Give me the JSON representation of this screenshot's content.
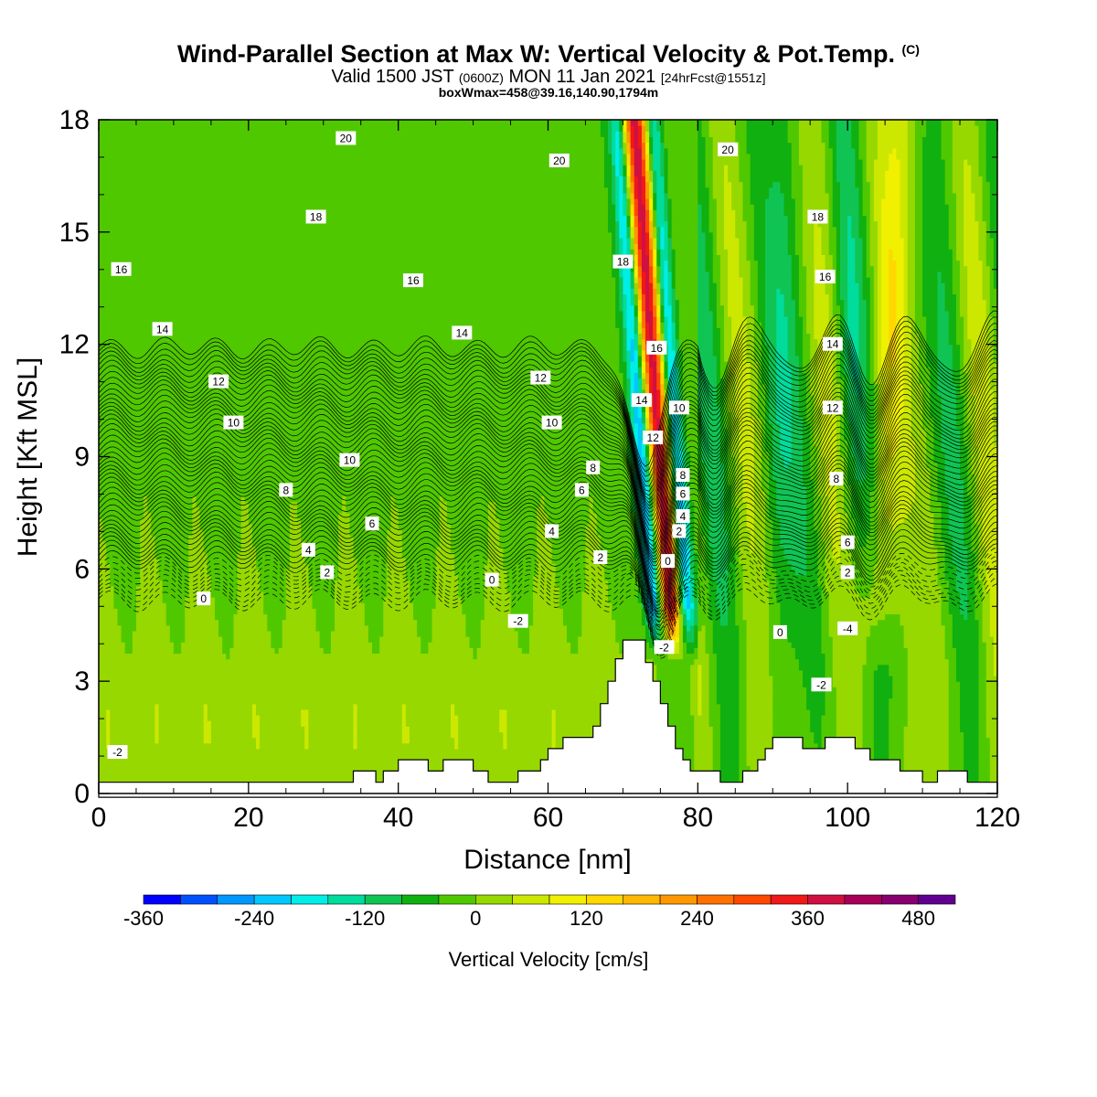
{
  "title": {
    "main": "Wind-Parallel Section at Max W: Vertical Velocity & Pot.Temp.",
    "copyright": "(C)",
    "valid_a": "Valid 1500 JST",
    "valid_utc": "(0600Z)",
    "valid_b": "MON 11 Jan 2021",
    "forecast": "[24hrFcst@1551z]",
    "boxline": "boxWmax=458@39.16,140.90,1794m"
  },
  "chart_data": {
    "type": "heatmap",
    "xlabel": "Distance [nm]",
    "ylabel": "Height [Kft MSL]",
    "xlim": [
      0,
      120
    ],
    "ylim": [
      0,
      18
    ],
    "xticks": [
      0,
      20,
      40,
      60,
      80,
      100,
      120
    ],
    "yticks": [
      0,
      3,
      6,
      9,
      12,
      15,
      18
    ],
    "colorbar": {
      "title": "Vertical Velocity [cm/s]",
      "levels_cm_s": [
        -360,
        -320,
        -280,
        -240,
        -200,
        -160,
        -120,
        -80,
        -40,
        0,
        40,
        80,
        120,
        160,
        200,
        240,
        280,
        320,
        360,
        400,
        440,
        480,
        520
      ],
      "labels": [
        "-360",
        "-240",
        "-120",
        "0",
        "120",
        "240",
        "360",
        "480"
      ],
      "label_values": [
        -360,
        -240,
        -120,
        0,
        120,
        240,
        360,
        480
      ],
      "colors": [
        "#0000ff",
        "#0050ff",
        "#0098ff",
        "#00c8ff",
        "#00eee8",
        "#00dc9c",
        "#10c454",
        "#10b010",
        "#50c800",
        "#96d800",
        "#cce800",
        "#f0f000",
        "#ffd800",
        "#ffb800",
        "#ff9800",
        "#ff7000",
        "#ff4800",
        "#f01818",
        "#d01040",
        "#a80058",
        "#880070",
        "#600090"
      ]
    },
    "theta_contour_labels": [
      "20",
      "20",
      "20",
      "18",
      "18",
      "18",
      "16",
      "16",
      "16",
      "16",
      "14",
      "14",
      "14",
      "14",
      "12",
      "12",
      "12",
      "12",
      "10",
      "10",
      "10",
      "10",
      "8",
      "8",
      "8",
      "8",
      "6",
      "6",
      "6",
      "6",
      "4",
      "4",
      "4",
      "2",
      "2",
      "2",
      "2",
      "0",
      "0",
      "0",
      "0",
      "-2",
      "-2",
      "-2",
      "-2",
      "-4"
    ],
    "terrain_kft": [
      [
        0,
        0.3
      ],
      [
        33,
        0.3
      ],
      [
        34,
        0.6
      ],
      [
        36,
        0.6
      ],
      [
        37,
        0.3
      ],
      [
        38,
        0.6
      ],
      [
        40,
        0.9
      ],
      [
        43,
        0.9
      ],
      [
        44,
        0.6
      ],
      [
        45,
        0.6
      ],
      [
        46,
        0.9
      ],
      [
        49,
        0.9
      ],
      [
        50,
        0.6
      ],
      [
        51,
        0.6
      ],
      [
        52,
        0.3
      ],
      [
        55,
        0.3
      ],
      [
        56,
        0.6
      ],
      [
        58,
        0.6
      ],
      [
        59,
        0.9
      ],
      [
        60,
        1.2
      ],
      [
        62,
        1.5
      ],
      [
        65,
        1.5
      ],
      [
        66,
        1.8
      ],
      [
        67,
        2.4
      ],
      [
        68,
        3.0
      ],
      [
        69,
        3.6
      ],
      [
        70,
        4.1
      ],
      [
        72,
        4.1
      ],
      [
        73,
        3.5
      ],
      [
        74,
        3.0
      ],
      [
        75,
        2.4
      ],
      [
        76,
        1.8
      ],
      [
        77,
        1.2
      ],
      [
        78,
        0.9
      ],
      [
        79,
        0.6
      ],
      [
        80,
        0.6
      ],
      [
        82,
        0.6
      ],
      [
        83,
        0.3
      ],
      [
        85,
        0.3
      ],
      [
        86,
        0.6
      ],
      [
        88,
        0.9
      ],
      [
        89,
        1.2
      ],
      [
        90,
        1.5
      ],
      [
        93,
        1.5
      ],
      [
        94,
        1.2
      ],
      [
        96,
        1.2
      ],
      [
        97,
        1.5
      ],
      [
        100,
        1.5
      ],
      [
        101,
        1.2
      ],
      [
        103,
        0.9
      ],
      [
        106,
        0.9
      ],
      [
        107,
        0.6
      ],
      [
        110,
        0.3
      ],
      [
        112,
        0.6
      ],
      [
        115,
        0.6
      ],
      [
        116,
        0.3
      ],
      [
        120,
        0.3
      ]
    ]
  }
}
